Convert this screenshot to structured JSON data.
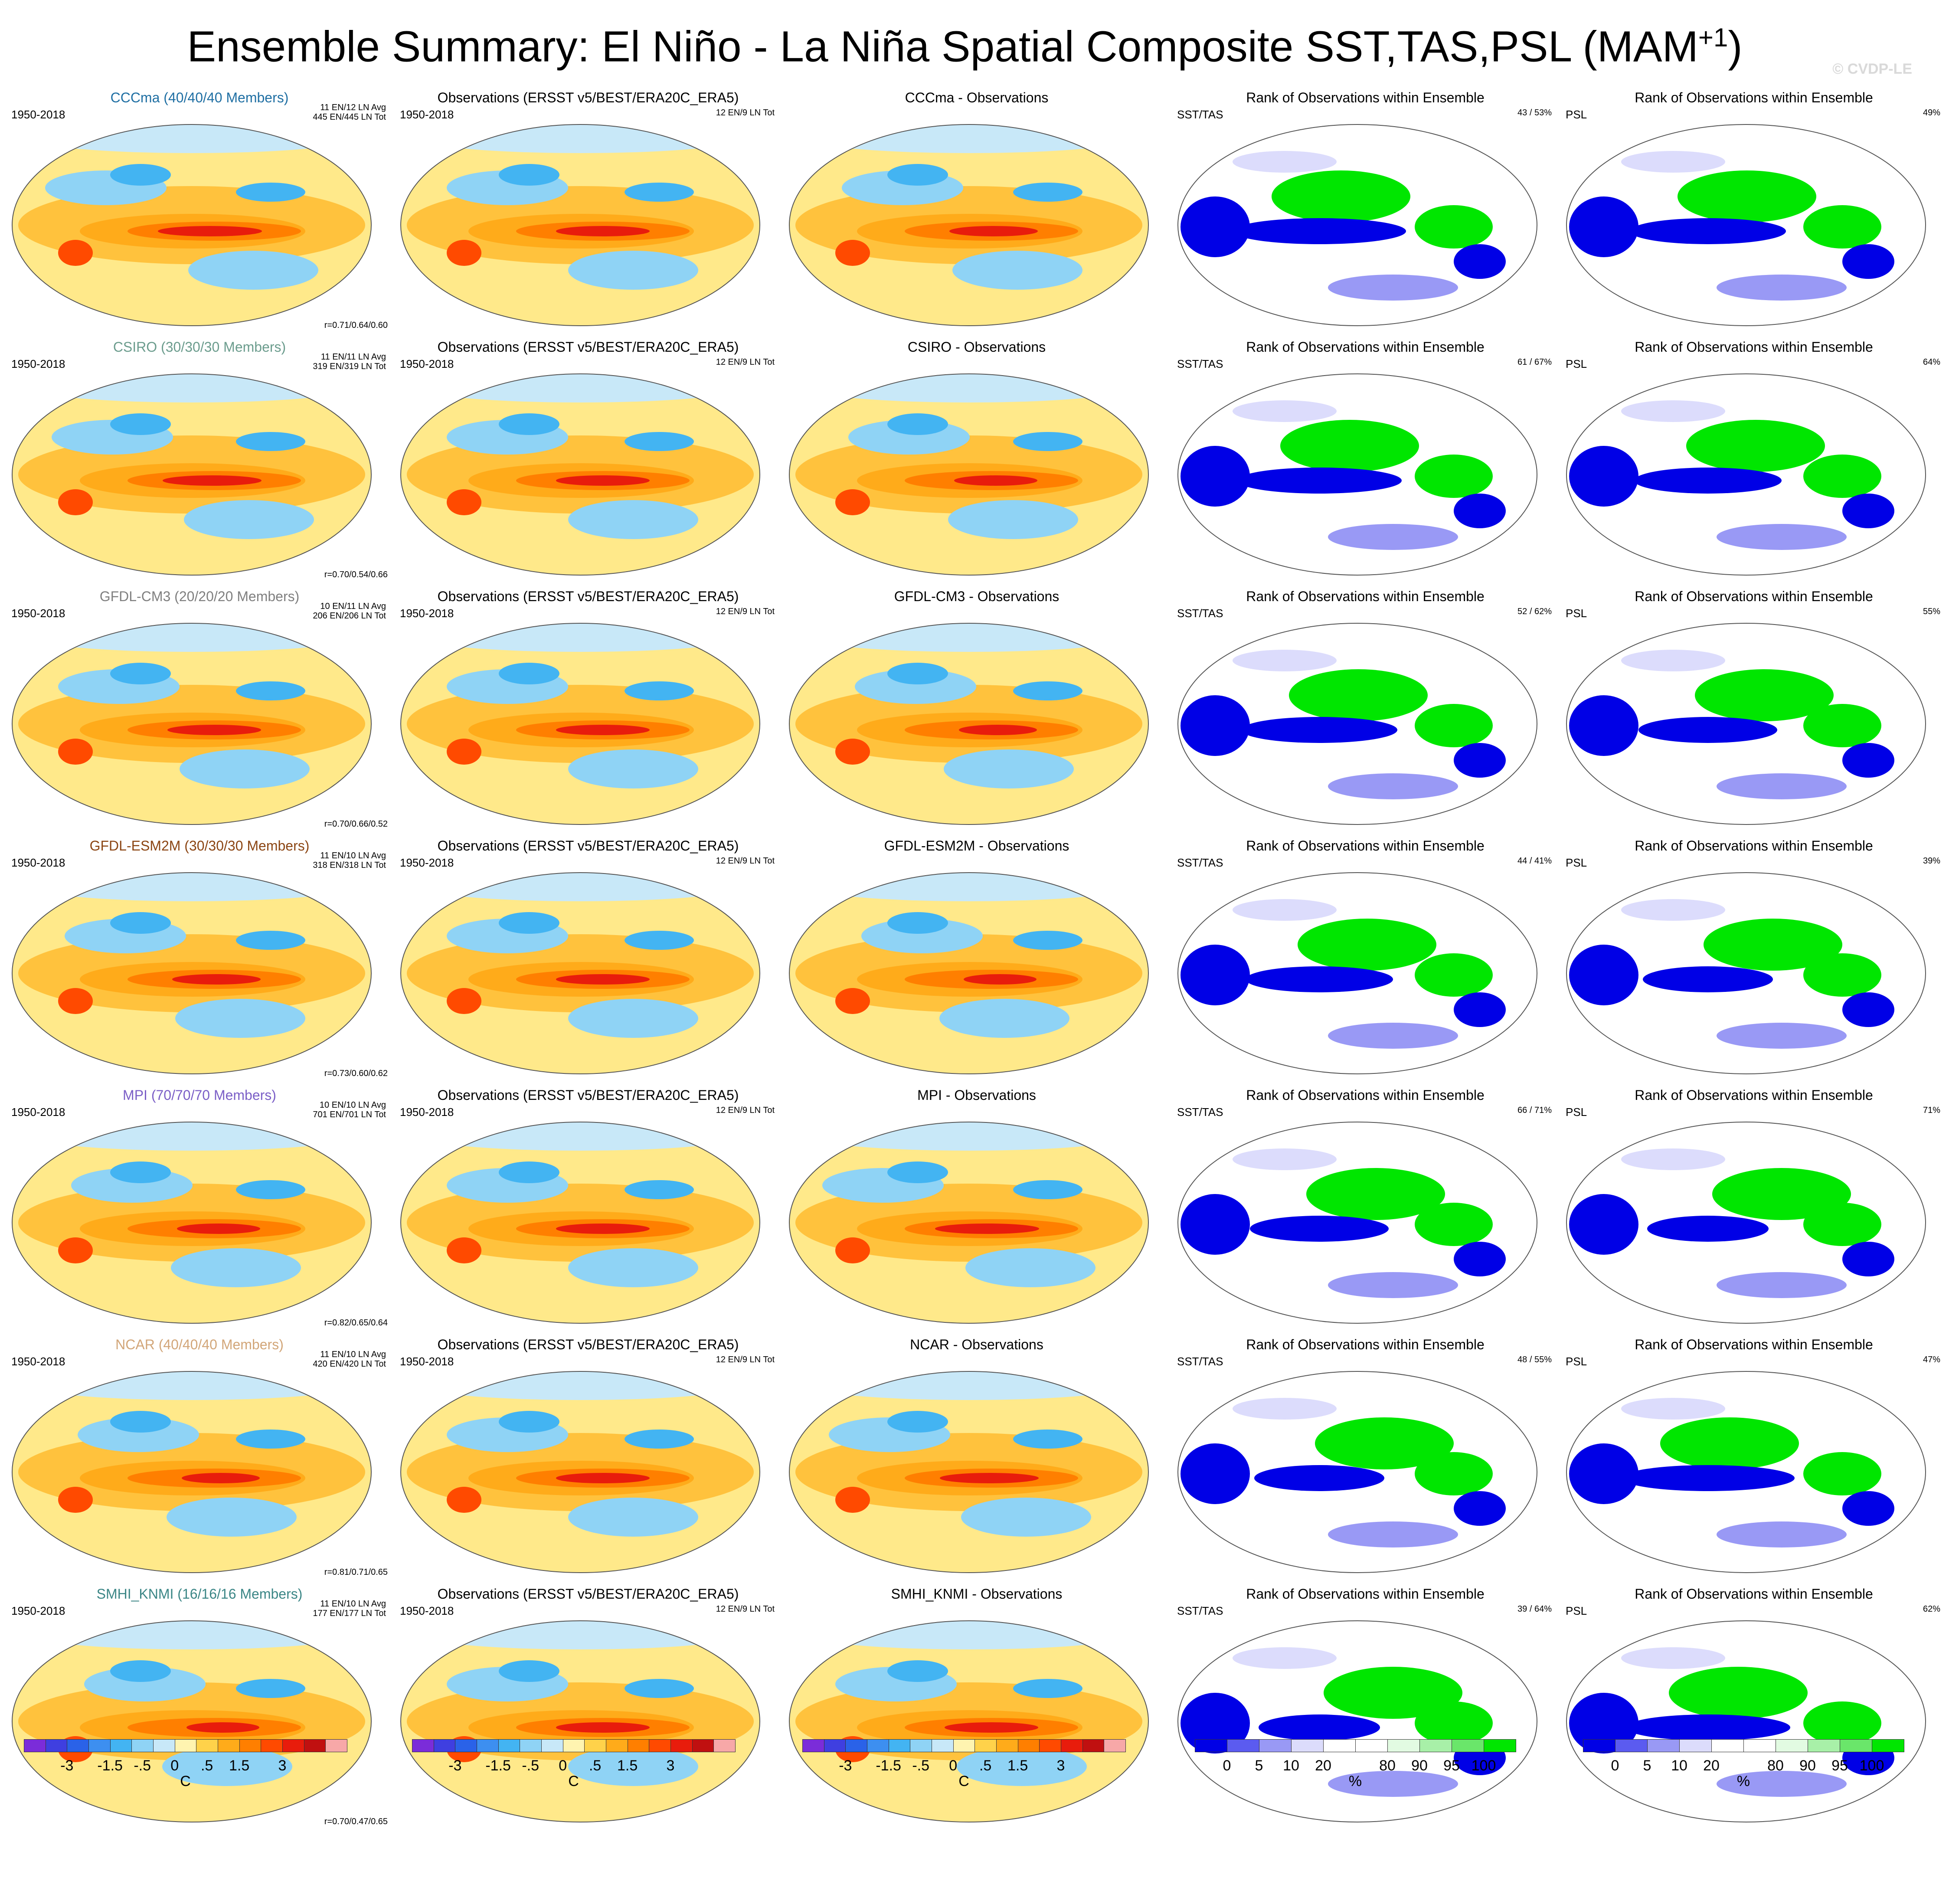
{
  "title_main": "Ensemble Summary: El Niño - La Niña Spatial Composite SST,TAS,PSL (MAM",
  "title_sup": "+1",
  "title_close": ")",
  "watermark": "© CVDP-LE",
  "obs_title": "Observations (ERSST v5/BEST/ERA20C_ERA5)",
  "years": "1950-2018",
  "obs_counts": "12 EN/9 LN Tot",
  "rank_title": "Rank of Observations within Ensemble",
  "sst_label": "SST/TAS",
  "psl_label": "PSL",
  "rows": [
    {
      "model": "CCCma (40/40/40 Members)",
      "color": "#1f6fa3",
      "counts": "11 EN/12 LN Avg\n445 EN/445 LN Tot",
      "corr": "r=0.71/0.64/0.60",
      "diff": "CCCma - Observations",
      "sst_rank": "43 /  53%",
      "psl_rank": "49%"
    },
    {
      "model": "CSIRO (30/30/30 Members)",
      "color": "#6b9c8d",
      "counts": "11 EN/11 LN Avg\n319 EN/319 LN Tot",
      "corr": "r=0.70/0.54/0.66",
      "diff": "CSIRO - Observations",
      "sst_rank": "61 /  67%",
      "psl_rank": "64%"
    },
    {
      "model": "GFDL-CM3 (20/20/20 Members)",
      "color": "#7f7f7f",
      "counts": "10 EN/11 LN Avg\n206 EN/206 LN Tot",
      "corr": "r=0.70/0.66/0.52",
      "diff": "GFDL-CM3 - Observations",
      "sst_rank": "52 /  62%",
      "psl_rank": "55%"
    },
    {
      "model": "GFDL-ESM2M (30/30/30 Members)",
      "color": "#8b4513",
      "counts": "11 EN/10 LN Avg\n318 EN/318 LN Tot",
      "corr": "r=0.73/0.60/0.62",
      "diff": "GFDL-ESM2M - Observations",
      "sst_rank": "44 /  41%",
      "psl_rank": "39%"
    },
    {
      "model": "MPI (70/70/70 Members)",
      "color": "#7b5fc7",
      "counts": "10 EN/10 LN Avg\n701 EN/701 LN Tot",
      "corr": "r=0.82/0.65/0.64",
      "diff": "MPI - Observations",
      "sst_rank": "66 /  71%",
      "psl_rank": "71%"
    },
    {
      "model": "NCAR (40/40/40 Members)",
      "color": "#d2a679",
      "counts": "11 EN/10 LN Avg\n420 EN/420 LN Tot",
      "corr": "r=0.81/0.71/0.65",
      "diff": "NCAR - Observations",
      "sst_rank": "48 /  55%",
      "psl_rank": "47%"
    },
    {
      "model": "SMHI_KNMI (16/16/16 Members)",
      "color": "#3b8686",
      "counts": "11 EN/10 LN Avg\n177 EN/177 LN Tot",
      "corr": "r=0.70/0.47/0.65",
      "diff": "SMHI_KNMI - Observations",
      "sst_rank": "39 /  64%",
      "psl_rank": "62%"
    }
  ],
  "colorbar_temp": {
    "colors": [
      "#7b2cd9",
      "#3f3fe0",
      "#2a62e8",
      "#3d8ff0",
      "#43b4f2",
      "#8fd3f5",
      "#c8e8f8",
      "#fff4b0",
      "#ffd24a",
      "#ffab1a",
      "#ff7f00",
      "#ff4a00",
      "#e81c0c",
      "#c01010",
      "#f7a8a8"
    ],
    "labels": [
      "-3",
      "-1.5",
      "-.5",
      "0",
      ".5",
      "1.5",
      "3"
    ],
    "unit": "C"
  },
  "colorbar_rank": {
    "colors": [
      "#0000e6",
      "#5b5bf0",
      "#9999f5",
      "#dcdcfc",
      "#ffffff",
      "#ffffff",
      "#e2fbe2",
      "#a8f0a8",
      "#6ae66a",
      "#00e600"
    ],
    "labels": [
      "0",
      "5",
      "10",
      "20",
      "80",
      "90",
      "95",
      "100"
    ],
    "unit": "%"
  }
}
